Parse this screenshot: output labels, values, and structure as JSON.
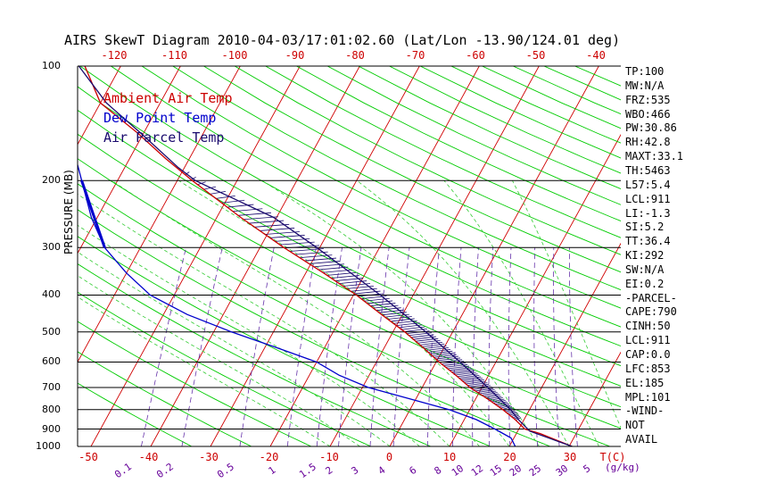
{
  "header": {
    "title": "AIRS SkewT Diagram 2010-04-03/17:01:02.60 (Lat/Lon -13.90/124.01 deg)"
  },
  "legend": {
    "ambient": "Ambient Air Temp",
    "dewpoint": "Dew Point Temp",
    "parcel": "Air Parcel Temp"
  },
  "axis": {
    "ylabel": "PRESSURE (MB)",
    "pressure_ticks": [
      "100",
      "200",
      "300",
      "400",
      "500",
      "600",
      "700",
      "800",
      "900",
      "1000"
    ],
    "top_temp_ticks": [
      "-120",
      "-110",
      "-100",
      "-90",
      "-80",
      "-70",
      "-60",
      "-50",
      "-40"
    ],
    "bottom_temp_ticks": [
      "-50",
      "-40",
      "-30",
      "-20",
      "-10",
      "0",
      "10",
      "20",
      "30"
    ],
    "bottom_unit": "T(C)",
    "mixing_ratio_ticks": [
      "0.1",
      "0.2",
      "0.5",
      "1",
      "1.5",
      "2",
      "3",
      "4",
      "6",
      "8",
      "10",
      "12",
      "15",
      "20",
      "25",
      "30"
    ],
    "mixing_unit": "(g/kg)",
    "mixing_prefix": "5"
  },
  "indices": [
    "TP:100",
    "MW:N/A",
    "FRZ:535",
    "WBO:466",
    "PW:30.86",
    "RH:42.8",
    "MAXT:33.1",
    "TH:5463",
    "L57:5.4",
    "LCL:911",
    "LI:-1.3",
    "SI:5.2",
    "TT:36.4",
    "KI:292",
    "SW:N/A",
    "EI:0.2",
    "-PARCEL-",
    "CAPE:790",
    "CINH:50",
    "LCL:911",
    "CAP:0.0",
    "LFC:853",
    "EL:185",
    "MPL:101",
    "-WIND-",
    "NOT",
    "AVAIL"
  ],
  "colors": {
    "ambient": "#cc0000",
    "dewpoint": "#0000cc",
    "parcel": "#1a0a6e",
    "isotherm": "#d00000",
    "dry_adiabat": "#00cc00",
    "moist_adiabat": "#33cc33",
    "mixing_ratio": "#6633aa",
    "top_tick_label": "#cc0000",
    "bottom_tick_label": "#cc0000",
    "mixing_label": "#660099",
    "cape_hatch": "#1a0a6e"
  },
  "chart_data": {
    "type": "line",
    "title": "AIRS SkewT Diagram 2010-04-03/17:01:02.60 (Lat/Lon -13.90/124.01 deg)",
    "ylabel": "PRESSURE (MB)",
    "xlabel": "T(C)",
    "y_scale": "log",
    "ylim": [
      1000,
      100
    ],
    "skewed_temperature_axis": true,
    "series": [
      {
        "name": "Ambient Air Temp",
        "pressure": [
          1000,
          925,
          900,
          850,
          800,
          750,
          700,
          650,
          600,
          550,
          500,
          450,
          400,
          350,
          300,
          250,
          200,
          175,
          150,
          125,
          100
        ],
        "values": [
          30.5,
          24.0,
          21.0,
          18.5,
          15.5,
          12.0,
          8.0,
          4.5,
          0.5,
          -3.5,
          -8.0,
          -13.5,
          -19.5,
          -27.0,
          -36.0,
          -46.0,
          -57.5,
          -64.0,
          -71.0,
          -80.0,
          -86.0
        ]
      },
      {
        "name": "Dew Point Temp",
        "pressure": [
          1000,
          950,
          900,
          850,
          800,
          750,
          700,
          650,
          600,
          550,
          500,
          450,
          400,
          350,
          300,
          250,
          200,
          175,
          150,
          125,
          100
        ],
        "values": [
          21.0,
          19.5,
          16.0,
          12.0,
          6.5,
          -1.0,
          -9.0,
          -15.0,
          -20.0,
          -28.0,
          -37.0,
          -46.0,
          -54.0,
          -60.0,
          -66.0,
          -71.0,
          -76.0,
          -79.0,
          -82.0,
          -86.0,
          -90.0
        ]
      },
      {
        "name": "Air Parcel Temp",
        "pressure": [
          1000,
          911,
          853,
          800,
          700,
          600,
          500,
          400,
          300,
          250,
          200,
          185,
          150,
          125,
          100
        ],
        "values": [
          30.5,
          22.0,
          19.2,
          16.8,
          11.0,
          4.0,
          -4.5,
          -15.5,
          -30.5,
          -40.5,
          -57.0,
          -61.0,
          -70.5,
          -79.0,
          -87.0
        ]
      }
    ]
  }
}
